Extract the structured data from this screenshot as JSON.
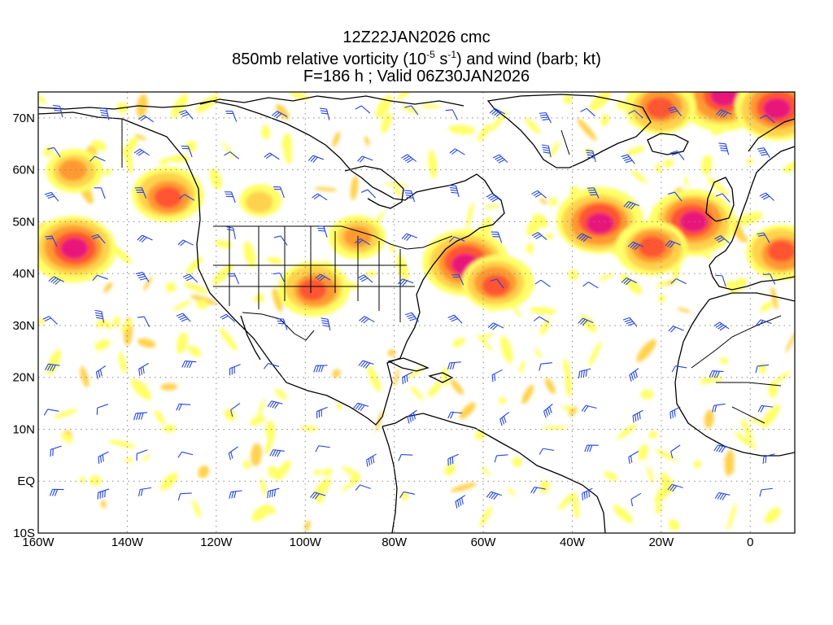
{
  "header": {
    "line1": "12Z22JAN2026 cmc",
    "line2_prefix": "850mb relative vorticity (10",
    "line2_exp1": "-5",
    "line2_mid": " s",
    "line2_exp2": "-1",
    "line2_suffix": ") and wind (barb; kt)",
    "line3": "F=186 h ; Valid 06Z30JAN2026"
  },
  "axes": {
    "lat_labels": [
      "70N",
      "60N",
      "50N",
      "40N",
      "30N",
      "20N",
      "10N",
      "EQ",
      "10S"
    ],
    "lat_values": [
      70,
      60,
      50,
      40,
      30,
      20,
      10,
      0,
      -10
    ],
    "lon_labels": [
      "160W",
      "140W",
      "120W",
      "100W",
      "80W",
      "60W",
      "40W",
      "20W",
      "0"
    ],
    "lon_values": [
      -160,
      -140,
      -120,
      -100,
      -80,
      -60,
      -40,
      -20,
      0
    ],
    "lon_range": [
      -160,
      10
    ],
    "lat_range": [
      -10,
      75
    ],
    "grid": "dotted"
  },
  "colors": {
    "shade_low": "#ffff66",
    "shade_mid": "#ffd24d",
    "shade_high": "#ff9933",
    "shade_higher": "#ff5533",
    "shade_max": "#e8157a",
    "barb": "#2244dd",
    "coast": "#000000",
    "grid": "#888888"
  },
  "vorticity_features": [
    {
      "lon": -64,
      "lat": 42,
      "level": 5
    },
    {
      "lon": -57,
      "lat": 38,
      "level": 4
    },
    {
      "lon": -34,
      "lat": 50,
      "level": 5
    },
    {
      "lon": -13,
      "lat": 50,
      "level": 5
    },
    {
      "lon": -152,
      "lat": 45,
      "level": 5
    },
    {
      "lon": -131,
      "lat": 55,
      "level": 4
    },
    {
      "lon": -98,
      "lat": 37,
      "level": 4
    },
    {
      "lon": -22,
      "lat": 45,
      "level": 4
    },
    {
      "lon": -6,
      "lat": 74,
      "level": 5
    },
    {
      "lon": 6,
      "lat": 72,
      "level": 5
    },
    {
      "lon": -20,
      "lat": 72,
      "level": 4
    },
    {
      "lon": 7,
      "lat": 44,
      "level": 4
    },
    {
      "lon": -110,
      "lat": 54,
      "level": 2
    },
    {
      "lon": -88,
      "lat": 47,
      "level": 3
    },
    {
      "lon": -152,
      "lat": 60,
      "level": 3
    }
  ]
}
